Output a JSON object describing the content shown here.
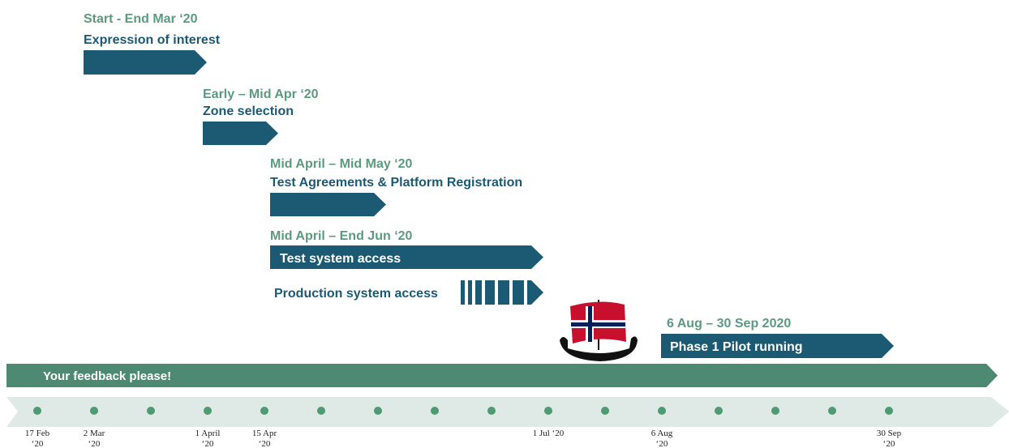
{
  "phases": [
    {
      "date": "Start - End Mar ‘20",
      "title": "Expression of interest"
    },
    {
      "date": "Early – Mid Apr ‘20",
      "title": "Zone selection"
    },
    {
      "date": "Mid April – Mid May ‘20",
      "title": "Test Agreements & Platform Registration"
    },
    {
      "date": "Mid April – End Jun ‘20",
      "title": "Test system access"
    },
    {
      "title": "Production system access"
    },
    {
      "date": "6 Aug – 30 Sep 2020",
      "title": "Phase 1 Pilot running"
    }
  ],
  "feedback": "Your feedback please!",
  "timeline": {
    "labels": [
      [
        "17 Feb",
        "‘20"
      ],
      [
        "2 Mar",
        "‘20"
      ],
      [
        "1 April",
        "‘20"
      ],
      [
        "15 Apr",
        "‘20"
      ],
      [
        "1 Jul ‘20"
      ],
      [
        "6 Aug",
        "‘20"
      ],
      [
        "30 Sep",
        "‘20"
      ]
    ]
  }
}
